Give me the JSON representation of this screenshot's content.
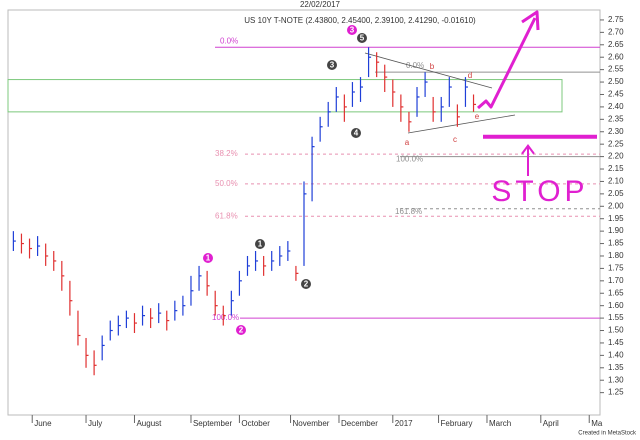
{
  "chart_data": {
    "type": "ohlc",
    "date": "22/02/2017",
    "title": "US 10Y T-NOTE (2.43800, 2.45400, 2.39100, 2.41290, -0.01610)",
    "credit": "Created in MetaStock",
    "up_color": "#1f3fd8",
    "down_color": "#e03030",
    "x": [
      2,
      5,
      8,
      11,
      14,
      17,
      20,
      23,
      26,
      29,
      32,
      35,
      38,
      41,
      44,
      47,
      50,
      53,
      56,
      59,
      62,
      65,
      68,
      71,
      74,
      77,
      80,
      83,
      86,
      89,
      92,
      95,
      98,
      101,
      104,
      107,
      110,
      113,
      116,
      119,
      122,
      125,
      128,
      131,
      134,
      137,
      140,
      143,
      146,
      149,
      152,
      155,
      158,
      161,
      164,
      167,
      170,
      173
    ],
    "high": [
      1.9,
      1.89,
      1.87,
      1.88,
      1.85,
      1.82,
      1.78,
      1.7,
      1.58,
      1.47,
      1.42,
      1.48,
      1.54,
      1.56,
      1.58,
      1.57,
      1.6,
      1.59,
      1.61,
      1.58,
      1.62,
      1.64,
      1.72,
      1.76,
      1.74,
      1.66,
      1.6,
      1.66,
      1.74,
      1.8,
      1.82,
      1.8,
      1.82,
      1.84,
      1.86,
      1.76,
      2.1,
      2.28,
      2.36,
      2.42,
      2.48,
      2.45,
      2.5,
      2.52,
      2.64,
      2.62,
      2.57,
      2.51,
      2.45,
      2.38,
      2.48,
      2.54,
      2.44,
      2.44,
      2.52,
      2.41,
      2.52,
      2.45
    ],
    "low": [
      1.82,
      1.81,
      1.79,
      1.8,
      1.76,
      1.74,
      1.66,
      1.56,
      1.44,
      1.35,
      1.32,
      1.38,
      1.46,
      1.48,
      1.51,
      1.49,
      1.52,
      1.51,
      1.53,
      1.5,
      1.54,
      1.56,
      1.6,
      1.66,
      1.64,
      1.56,
      1.52,
      1.56,
      1.64,
      1.72,
      1.74,
      1.72,
      1.74,
      1.76,
      1.78,
      1.7,
      1.76,
      2.02,
      2.26,
      2.32,
      2.38,
      2.34,
      2.4,
      2.42,
      2.52,
      2.52,
      2.46,
      2.4,
      2.34,
      2.3,
      2.36,
      2.44,
      2.34,
      2.34,
      2.4,
      2.32,
      2.4,
      2.38
    ],
    "close": [
      1.86,
      1.85,
      1.83,
      1.84,
      1.8,
      1.78,
      1.72,
      1.62,
      1.48,
      1.4,
      1.36,
      1.44,
      1.5,
      1.52,
      1.55,
      1.53,
      1.56,
      1.55,
      1.57,
      1.54,
      1.58,
      1.6,
      1.66,
      1.72,
      1.68,
      1.6,
      1.56,
      1.62,
      1.7,
      1.76,
      1.78,
      1.76,
      1.78,
      1.8,
      1.82,
      1.73,
      2.05,
      2.24,
      2.32,
      2.38,
      2.44,
      2.4,
      2.46,
      2.48,
      2.6,
      2.58,
      2.52,
      2.46,
      2.4,
      2.34,
      2.44,
      2.5,
      2.38,
      2.4,
      2.48,
      2.36,
      2.48,
      2.41
    ],
    "xlim": [
      0,
      220
    ],
    "xticks": [
      {
        "value": 9,
        "label": "June"
      },
      {
        "value": 29,
        "label": "July"
      },
      {
        "value": 47,
        "label": "August"
      },
      {
        "value": 68,
        "label": "September"
      },
      {
        "value": 86,
        "label": "October"
      },
      {
        "value": 105,
        "label": "November"
      },
      {
        "value": 123,
        "label": "December"
      },
      {
        "value": 143,
        "label": "2017"
      },
      {
        "value": 160,
        "label": "February"
      },
      {
        "value": 178,
        "label": "March"
      },
      {
        "value": 198,
        "label": "April"
      },
      {
        "value": 216,
        "label": "Ma"
      }
    ],
    "ylim": [
      1.16,
      2.79
    ],
    "yticks": [
      1.25,
      {
        "value": 1.3,
        "label": "1.30"
      },
      1.35,
      {
        "value": 1.4,
        "label": "1.40"
      },
      1.45,
      {
        "value": 1.5,
        "label": "1.50"
      },
      1.55,
      {
        "value": 1.6,
        "label": "1.60"
      },
      1.65,
      {
        "value": 1.7,
        "label": "1.70"
      },
      1.75,
      {
        "value": 1.8,
        "label": "1.80"
      },
      1.85,
      {
        "value": 1.9,
        "label": "1.90"
      },
      1.95,
      {
        "value": 2,
        "label": "2.00"
      },
      2.05,
      {
        "value": 2.1,
        "label": "2.10"
      },
      2.15,
      {
        "value": 2.2,
        "label": "2.20"
      },
      2.25,
      {
        "value": 2.3,
        "label": "2.30"
      },
      2.35,
      {
        "value": 2.4,
        "label": "2.40"
      },
      2.45,
      {
        "value": 2.5,
        "label": "2.50"
      },
      2.55,
      {
        "value": 2.6,
        "label": "2.60"
      },
      2.65,
      {
        "value": 2.7,
        "label": "2.70"
      },
      2.75
    ],
    "levels": [
      {
        "label": "0.0%",
        "value": 2.64,
        "color": "#d040d0",
        "dashed": false
      },
      {
        "label": "38.2%",
        "value": 2.21,
        "color": "#e890b0",
        "dashed": true
      },
      {
        "label": "50.0%",
        "value": 2.09,
        "color": "#e890b0",
        "dashed": true
      },
      {
        "label": "61.8%",
        "value": 1.96,
        "color": "#e890b0",
        "dashed": true
      },
      {
        "label": "100.0%",
        "value": 1.55,
        "color": "#d040d0",
        "dashed": false
      },
      {
        "label": "0.0%",
        "value": 2.54,
        "color": "#909090",
        "dashed": false
      },
      {
        "label": "100.0%",
        "value": 2.2,
        "color": "#909090",
        "dashed": false
      },
      {
        "label": "161.8%",
        "value": 1.99,
        "color": "#909090",
        "dashed": true
      }
    ],
    "zone": {
      "values": [
        2.38,
        2.51
      ],
      "color": "#7cc87c"
    },
    "stop": {
      "label": "STOP",
      "value": 2.28,
      "color": "#e020d0"
    },
    "waves": [
      {
        "label": "1",
        "color": "#e020d0"
      },
      {
        "label": "2",
        "color": "#e020d0"
      },
      {
        "label": "1",
        "color": "#444444"
      },
      {
        "label": "2",
        "color": "#444444"
      },
      {
        "label": "3",
        "color": "#444444"
      },
      {
        "label": "4",
        "color": "#444444"
      },
      {
        "label": "3",
        "color": "#e020d0"
      },
      {
        "label": "5",
        "color": "#444444"
      },
      {
        "label": "a",
        "color": "#d04040"
      },
      {
        "label": "b",
        "color": "#d04040"
      },
      {
        "label": "c",
        "color": "#d04040"
      },
      {
        "label": "d",
        "color": "#d04040"
      },
      {
        "label": "e",
        "color": "#d04040"
      }
    ]
  }
}
